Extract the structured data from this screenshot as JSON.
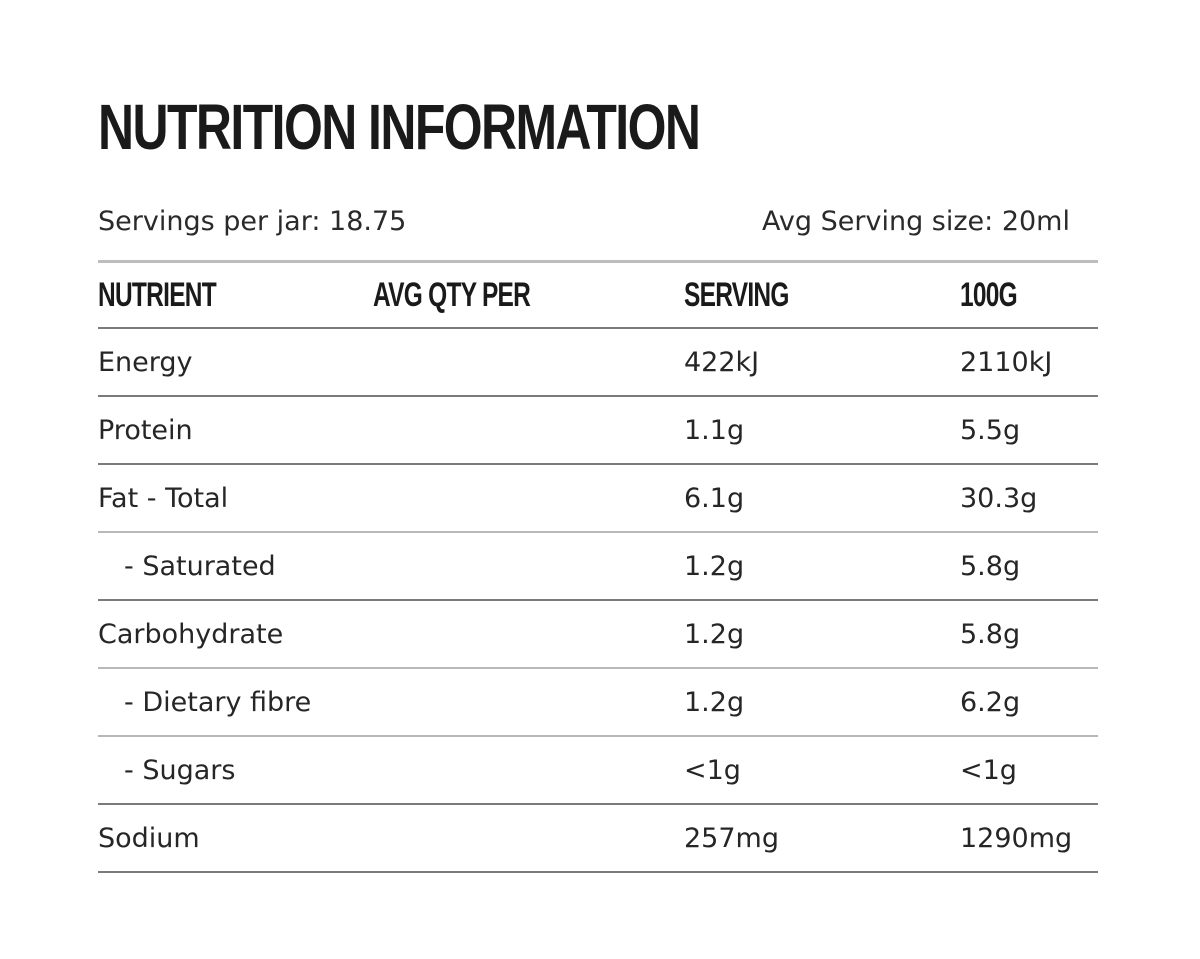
{
  "title": "NUTRITION INFORMATION",
  "servings_per_jar": "Servings per jar: 18.75",
  "avg_serving_size": "Avg Serving size: 20ml",
  "headers": [
    "NUTRIENT",
    "AVG QTY PER",
    "SERVING",
    "100G"
  ],
  "rows": [
    {
      "nutrient": "Energy",
      "serving": "422kJ",
      "per100g": "2110kJ"
    },
    {
      "nutrient": "Protein",
      "serving": "1.1g",
      "per100g": "5.5g"
    },
    {
      "nutrient": "Fat - Total",
      "serving": "6.1g",
      "per100g": "30.3g"
    },
    {
      "nutrient": "- Saturated",
      "serving": "1.2g",
      "per100g": "5.8g"
    },
    {
      "nutrient": "Carbohydrate",
      "serving": "1.2g",
      "per100g": "5.8g"
    },
    {
      "nutrient": "- Dietary fibre",
      "serving": "1.2g",
      "per100g": "6.2g"
    },
    {
      "nutrient": "- Sugars",
      "serving": "<1g",
      "per100g": "<1g"
    },
    {
      "nutrient": "Sodium",
      "serving": "257mg",
      "per100g": "1290mg"
    }
  ],
  "colors": {
    "text": "#1f1f1f",
    "divider_dark": "#7b7b7b",
    "divider_light": "#b8b8b8",
    "background": "#ffffff"
  }
}
